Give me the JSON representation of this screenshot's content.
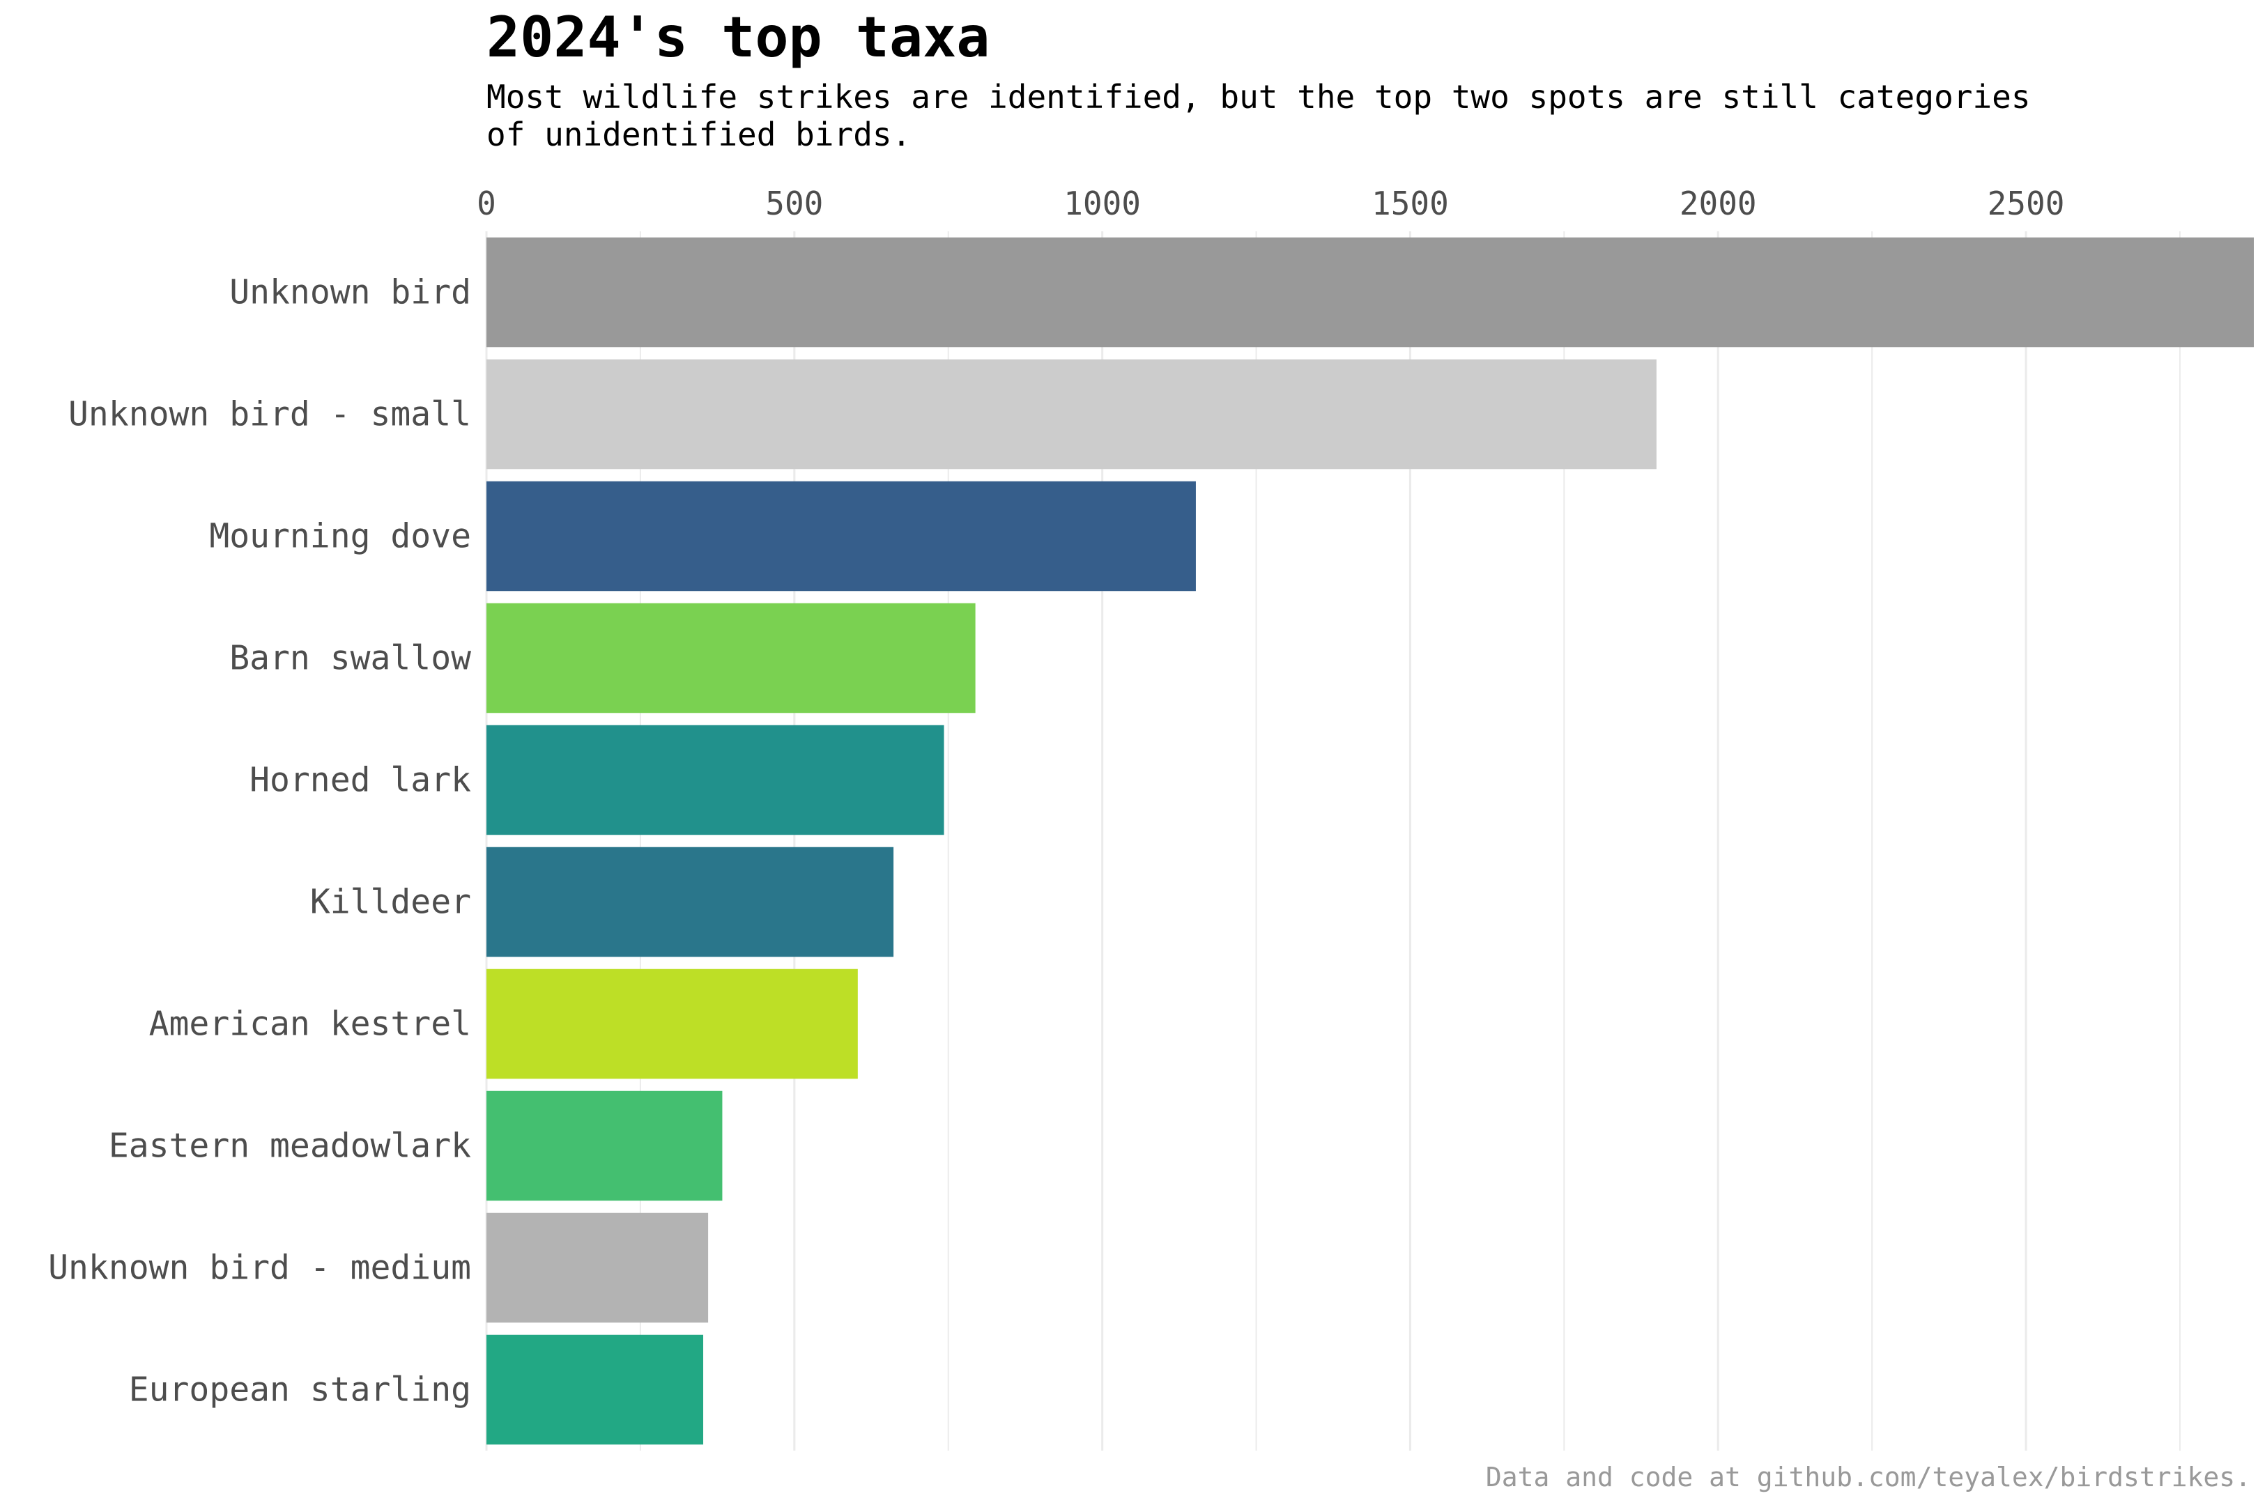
{
  "chart_data": {
    "type": "bar",
    "orientation": "horizontal",
    "title": "2024's top taxa",
    "subtitle": "Most wildlife strikes are identified, but the top two spots are still categories\nof unidentified birds.",
    "caption": "Data and code at github.com/teyalex/birdstrikes.",
    "xlabel": "",
    "ylabel": "",
    "xlim": [
      0,
      2870
    ],
    "x_ticks": [
      0,
      500,
      1000,
      1500,
      2000,
      2500
    ],
    "x_axis_position": "top",
    "grid": true,
    "legend": "none",
    "categories": [
      "Unknown bird",
      "Unknown bird - small",
      "Mourning dove",
      "Barn swallow",
      "Horned lark",
      "Killdeer",
      "American kestrel",
      "Eastern meadowlark",
      "Unknown bird - medium",
      "European starling"
    ],
    "values": [
      2870,
      1900,
      1152,
      794,
      743,
      661,
      603,
      383,
      360,
      352
    ],
    "colors": [
      "#999999",
      "#cccccc",
      "#365e8b",
      "#7ad151",
      "#21918c",
      "#2a768b",
      "#bddf26",
      "#44bf70",
      "#b3b3b3",
      "#22a884"
    ]
  }
}
